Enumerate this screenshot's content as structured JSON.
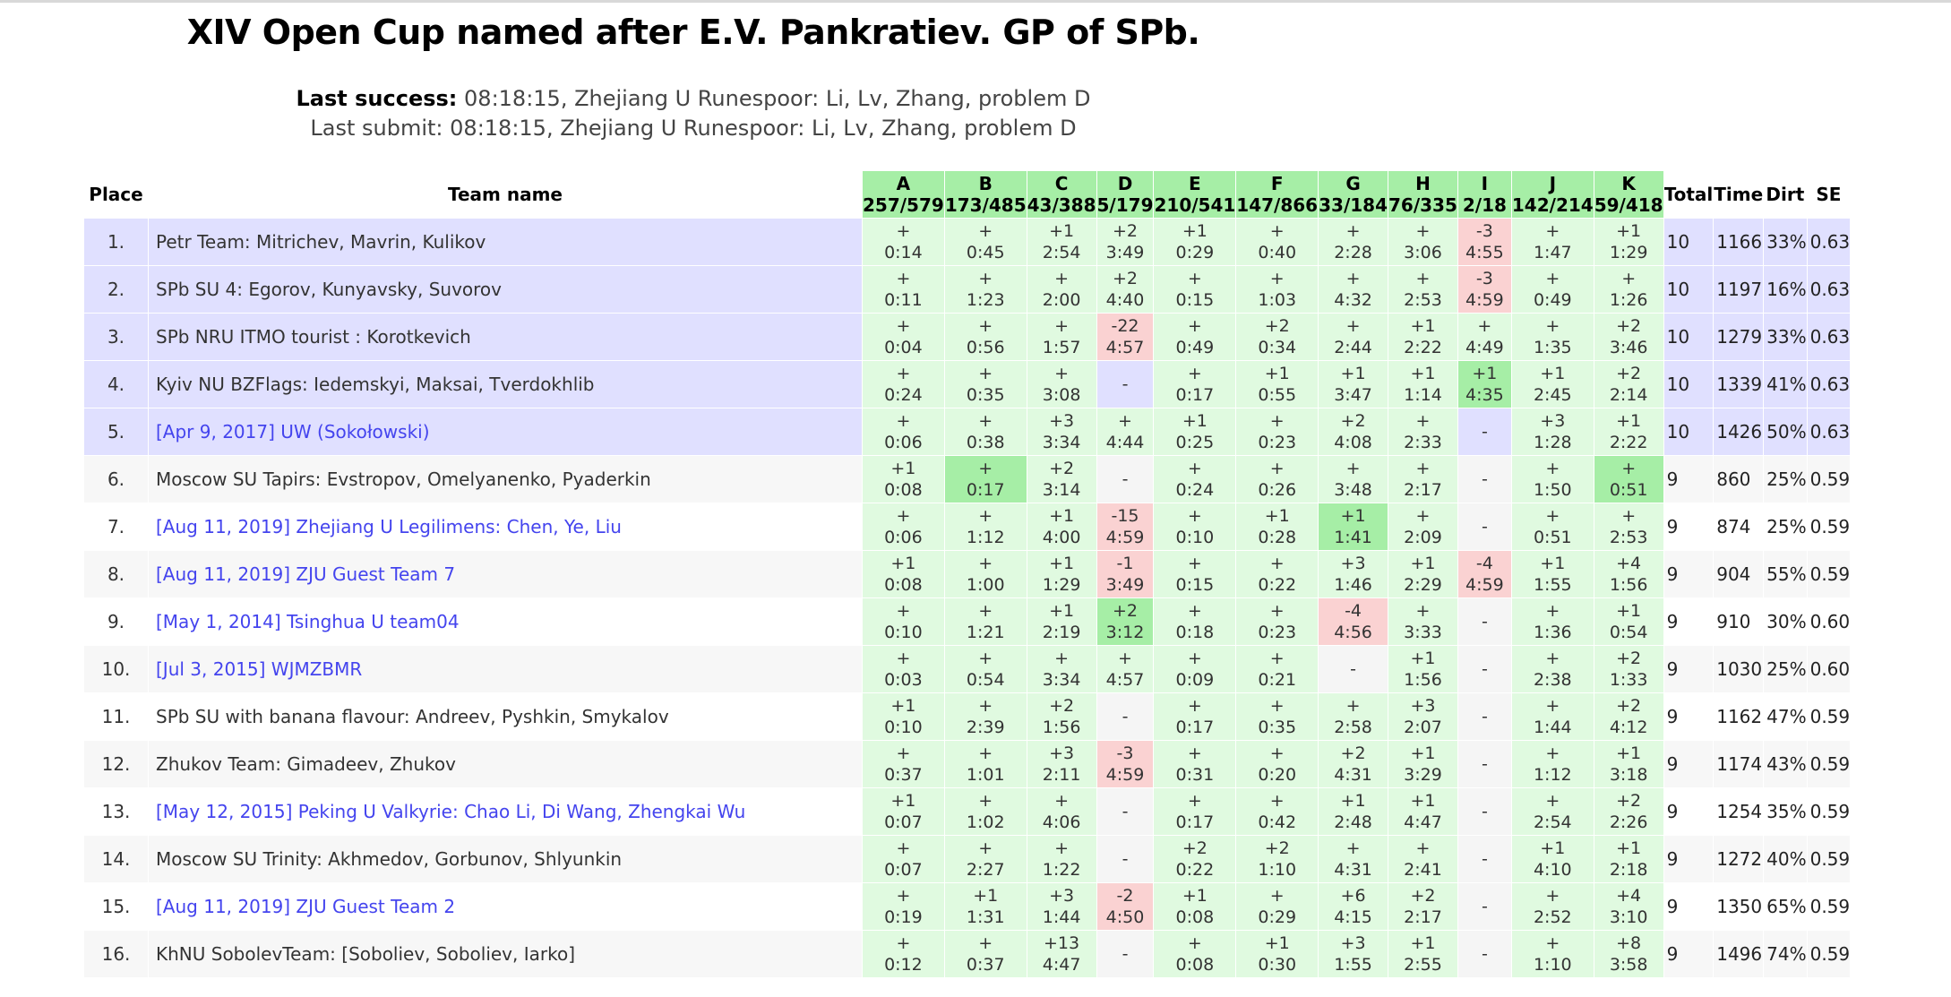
{
  "title": "XIV Open Cup named after E.V. Pankratiev. GP of SPb.",
  "last_success": {
    "label": "Last success:",
    "text": "08:18:15, Zhejiang U Runespoor: Li, Lv, Zhang, problem D"
  },
  "last_submit": {
    "text": "Last submit: 08:18:15, Zhejiang U Runespoor: Li, Lv, Zhang, problem D"
  },
  "headers": {
    "place": "Place",
    "team": "Team name",
    "total": "Total",
    "time": "Time",
    "dirt": "Dirt",
    "se": "SE"
  },
  "problems": [
    {
      "letter": "A",
      "stat": "257/579"
    },
    {
      "letter": "B",
      "stat": "173/485"
    },
    {
      "letter": "C",
      "stat": "43/388"
    },
    {
      "letter": "D",
      "stat": "5/179"
    },
    {
      "letter": "E",
      "stat": "210/541"
    },
    {
      "letter": "F",
      "stat": "147/866"
    },
    {
      "letter": "G",
      "stat": "33/184"
    },
    {
      "letter": "H",
      "stat": "76/335"
    },
    {
      "letter": "I",
      "stat": "2/18"
    },
    {
      "letter": "J",
      "stat": "142/214"
    },
    {
      "letter": "K",
      "stat": "59/418"
    }
  ],
  "colors": {
    "solved": "#e0fae0",
    "first_solve": "#a6eea6",
    "failed": "#fad2d2",
    "top_row": "#e0e0ff",
    "link": "#4444ee"
  },
  "rows": [
    {
      "place": "1.",
      "team": "Petr Team: Mitrichev, Mavrin, Kulikov",
      "link": false,
      "total": "10",
      "time": "1166",
      "dirt": "33%",
      "se": "0.63",
      "cells": [
        "+|0:14|ok",
        "+|0:45|ok",
        "+1|2:54|ok",
        "+2|3:49|ok",
        "+1|0:29|ok",
        "+|0:40|ok",
        "+|2:28|ok",
        "+|3:06|ok",
        "-3|4:55|bad",
        "+|1:47|ok",
        "+1|1:29|ok"
      ]
    },
    {
      "place": "2.",
      "team": "SPb SU 4: Egorov, Kunyavsky, Suvorov",
      "link": false,
      "total": "10",
      "time": "1197",
      "dirt": "16%",
      "se": "0.63",
      "cells": [
        "+|0:11|ok",
        "+|1:23|ok",
        "+|2:00|ok",
        "+2|4:40|ok",
        "+|0:15|ok",
        "+|1:03|ok",
        "+|4:32|ok",
        "+|2:53|ok",
        "-3|4:59|bad",
        "+|0:49|ok",
        "+|1:26|ok"
      ]
    },
    {
      "place": "3.",
      "team": "SPb NRU ITMO tourist : Korotkevich",
      "link": false,
      "total": "10",
      "time": "1279",
      "dirt": "33%",
      "se": "0.63",
      "cells": [
        "+|0:04|ok",
        "+|0:56|ok",
        "+|1:57|ok",
        "-22|4:57|bad",
        "+|0:49|ok",
        "+2|0:34|ok",
        "+|2:44|ok",
        "+1|2:22|ok",
        "+|4:49|ok",
        "+|1:35|ok",
        "+2|3:46|ok"
      ]
    },
    {
      "place": "4.",
      "team": "Kyiv NU BZFlags: Iedemskyi, Maksai, Tverdokhlib",
      "link": false,
      "total": "10",
      "time": "1339",
      "dirt": "41%",
      "se": "0.63",
      "cells": [
        "+|0:24|ok",
        "+|0:35|ok",
        "+|3:08|ok",
        "-||none",
        "+|0:17|ok",
        "+1|0:55|ok",
        "+1|3:47|ok",
        "+1|1:14|ok",
        "+1|4:35|first",
        "+1|2:45|ok",
        "+2|2:14|ok"
      ]
    },
    {
      "place": "5.",
      "team": "[Apr 9, 2017] UW (Sokołowski)",
      "link": true,
      "total": "10",
      "time": "1426",
      "dirt": "50%",
      "se": "0.63",
      "cells": [
        "+|0:06|ok",
        "+|0:38|ok",
        "+3|3:34|ok",
        "+|4:44|ok",
        "+1|0:25|ok",
        "+|0:23|ok",
        "+2|4:08|ok",
        "+|2:33|ok",
        "-||none",
        "+3|1:28|ok",
        "+1|2:22|ok"
      ]
    },
    {
      "place": "6.",
      "team": "Moscow SU Tapirs: Evstropov, Omelyanenko, Pyaderkin",
      "link": false,
      "total": "9",
      "time": "860",
      "dirt": "25%",
      "se": "0.59",
      "cells": [
        "+1|0:08|ok",
        "+|0:17|first",
        "+2|3:14|ok",
        "-||none",
        "+|0:24|ok",
        "+|0:26|ok",
        "+|3:48|ok",
        "+|2:17|ok",
        "-||none",
        "+|1:50|ok",
        "+|0:51|first"
      ]
    },
    {
      "place": "7.",
      "team": "[Aug 11, 2019] Zhejiang U Legilimens: Chen, Ye, Liu",
      "link": true,
      "total": "9",
      "time": "874",
      "dirt": "25%",
      "se": "0.59",
      "cells": [
        "+|0:06|ok",
        "+|1:12|ok",
        "+1|4:00|ok",
        "-15|4:59|bad",
        "+|0:10|ok",
        "+1|0:28|ok",
        "+1|1:41|first",
        "+|2:09|ok",
        "-||none",
        "+|0:51|ok",
        "+|2:53|ok"
      ]
    },
    {
      "place": "8.",
      "team": "[Aug 11, 2019] ZJU Guest Team 7",
      "link": true,
      "total": "9",
      "time": "904",
      "dirt": "55%",
      "se": "0.59",
      "cells": [
        "+1|0:08|ok",
        "+|1:00|ok",
        "+1|1:29|ok",
        "-1|3:49|bad",
        "+|0:15|ok",
        "+|0:22|ok",
        "+3|1:46|ok",
        "+1|2:29|ok",
        "-4|4:59|bad",
        "+1|1:55|ok",
        "+4|1:56|ok"
      ]
    },
    {
      "place": "9.",
      "team": "[May 1, 2014] Tsinghua U team04",
      "link": true,
      "total": "9",
      "time": "910",
      "dirt": "30%",
      "se": "0.60",
      "cells": [
        "+|0:10|ok",
        "+|1:21|ok",
        "+1|2:19|ok",
        "+2|3:12|first",
        "+|0:18|ok",
        "+|0:23|ok",
        "-4|4:56|bad",
        "+|3:33|ok",
        "-||none",
        "+|1:36|ok",
        "+1|0:54|ok"
      ]
    },
    {
      "place": "10.",
      "team": "[Jul 3, 2015] WJMZBMR",
      "link": true,
      "total": "9",
      "time": "1030",
      "dirt": "25%",
      "se": "0.60",
      "cells": [
        "+|0:03|ok",
        "+|0:54|ok",
        "+|3:34|ok",
        "+|4:57|ok",
        "+|0:09|ok",
        "+|0:21|ok",
        "-||none",
        "+1|1:56|ok",
        "-||none",
        "+|2:38|ok",
        "+2|1:33|ok"
      ]
    },
    {
      "place": "11.",
      "team": "SPb SU with banana flavour: Andreev, Pyshkin, Smykalov",
      "link": false,
      "total": "9",
      "time": "1162",
      "dirt": "47%",
      "se": "0.59",
      "cells": [
        "+1|0:10|ok",
        "+|2:39|ok",
        "+2|1:56|ok",
        "-||none",
        "+|0:17|ok",
        "+|0:35|ok",
        "+|2:58|ok",
        "+3|2:07|ok",
        "-||none",
        "+|1:44|ok",
        "+2|4:12|ok"
      ]
    },
    {
      "place": "12.",
      "team": "Zhukov Team: Gimadeev, Zhukov",
      "link": false,
      "total": "9",
      "time": "1174",
      "dirt": "43%",
      "se": "0.59",
      "cells": [
        "+|0:37|ok",
        "+|1:01|ok",
        "+3|2:11|ok",
        "-3|4:59|bad",
        "+|0:31|ok",
        "+|0:20|ok",
        "+2|4:31|ok",
        "+1|3:29|ok",
        "-||none",
        "+|1:12|ok",
        "+1|3:18|ok"
      ]
    },
    {
      "place": "13.",
      "team": "[May 12, 2015] Peking U Valkyrie: Chao Li, Di Wang, Zhengkai Wu",
      "link": true,
      "total": "9",
      "time": "1254",
      "dirt": "35%",
      "se": "0.59",
      "cells": [
        "+1|0:07|ok",
        "+|1:02|ok",
        "+|4:06|ok",
        "-||none",
        "+|0:17|ok",
        "+|0:42|ok",
        "+1|2:48|ok",
        "+1|4:47|ok",
        "-||none",
        "+|2:54|ok",
        "+2|2:26|ok"
      ]
    },
    {
      "place": "14.",
      "team": "Moscow SU Trinity: Akhmedov, Gorbunov, Shlyunkin",
      "link": false,
      "total": "9",
      "time": "1272",
      "dirt": "40%",
      "se": "0.59",
      "cells": [
        "+|0:07|ok",
        "+|2:27|ok",
        "+|1:22|ok",
        "-||none",
        "+2|0:22|ok",
        "+2|1:10|ok",
        "+|4:31|ok",
        "+|2:41|ok",
        "-||none",
        "+1|4:10|ok",
        "+1|2:18|ok"
      ]
    },
    {
      "place": "15.",
      "team": "[Aug 11, 2019] ZJU Guest Team 2",
      "link": true,
      "total": "9",
      "time": "1350",
      "dirt": "65%",
      "se": "0.59",
      "cells": [
        "+|0:19|ok",
        "+1|1:31|ok",
        "+3|1:44|ok",
        "-2|4:50|bad",
        "+1|0:08|ok",
        "+|0:29|ok",
        "+6|4:15|ok",
        "+2|2:17|ok",
        "-||none",
        "+|2:52|ok",
        "+4|3:10|ok"
      ]
    },
    {
      "place": "16.",
      "team": "KhNU SobolevTeam: [Soboliev, Soboliev, Iarko]",
      "link": false,
      "total": "9",
      "time": "1496",
      "dirt": "74%",
      "se": "0.59",
      "cells": [
        "+|0:12|ok",
        "+|0:37|ok",
        "+13|4:47|ok",
        "-||none",
        "+|0:08|ok",
        "+1|0:30|ok",
        "+3|1:55|ok",
        "+1|2:55|ok",
        "-||none",
        "+|1:10|ok",
        "+8|3:58|ok"
      ]
    }
  ]
}
